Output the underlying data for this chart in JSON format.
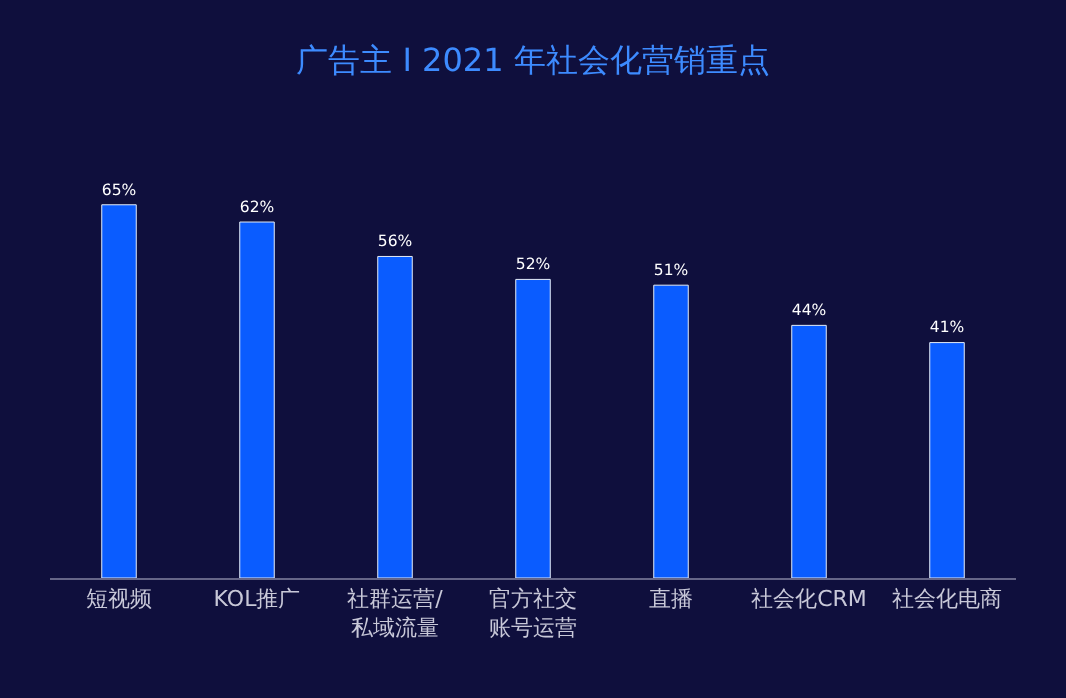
{
  "chart_data": {
    "type": "bar",
    "title": "广告主 I 2021 年社会化营销重点",
    "categories": [
      "短视频",
      "KOL推广",
      "社群运营/私域流量",
      "官方社交账号运营",
      "直播",
      "社会化CRM",
      "社会化电商"
    ],
    "values": [
      65,
      62,
      56,
      52,
      51,
      44,
      41
    ],
    "value_labels": [
      "65%",
      "62%",
      "56%",
      "52%",
      "51%",
      "44%",
      "41%"
    ],
    "color": "#0a5cff",
    "grid": false
  }
}
